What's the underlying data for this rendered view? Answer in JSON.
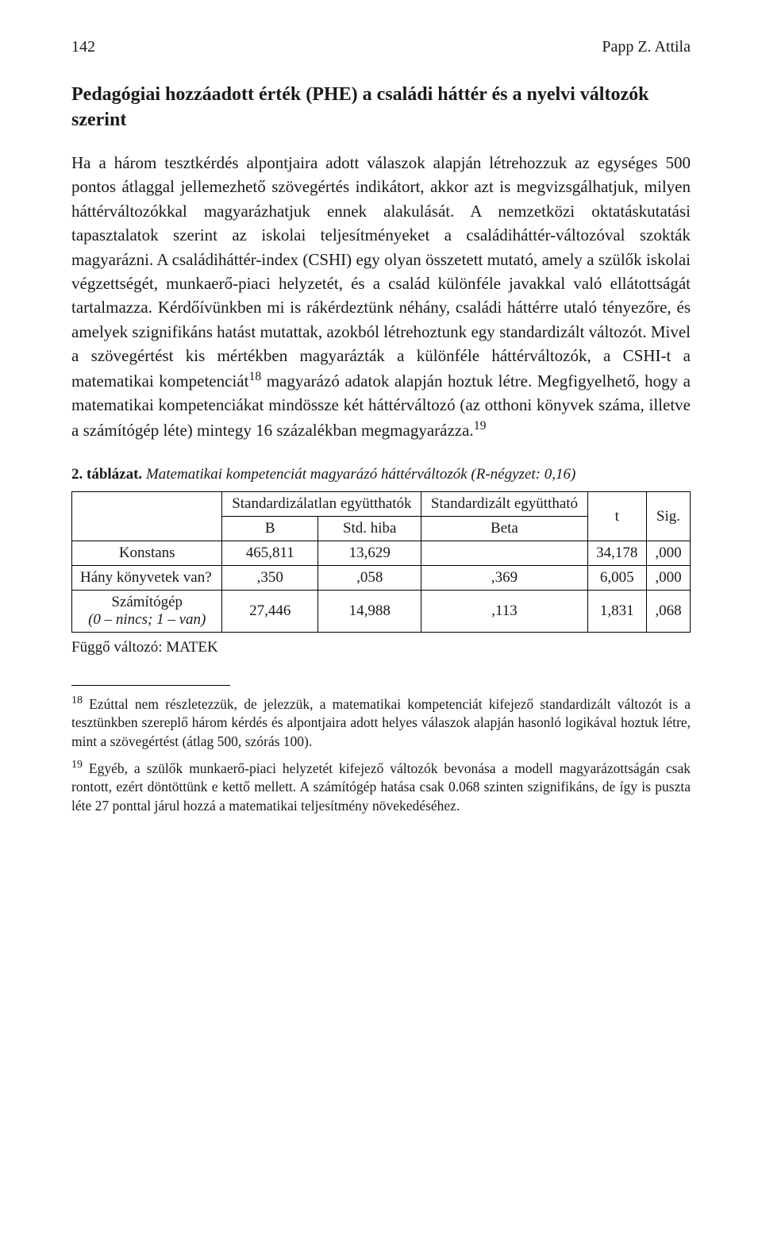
{
  "header": {
    "page_number": "142",
    "author": "Papp Z. Attila"
  },
  "section_heading": "Pedagógiai hozzáadott érték (PHE) a családi háttér és a nyelvi változók szerint",
  "body": {
    "p1a": "Ha a három tesztkérdés alpontjaira adott válaszok alapján létrehozzuk az egységes 500 pontos átlaggal jellemezhető szövegértés indikátort, akkor azt is megvizsgálhatjuk, milyen háttérváltozókkal magyarázhatjuk ennek alakulását. A nemzetközi oktatáskutatási tapasztalatok szerint az iskolai teljesítményeket a családiháttér-változóval szokták magyarázni. A családiháttér-index (CSHI) egy olyan összetett mutató, amely a szülők iskolai végzettségét, munkaerő-piaci helyzetét, és a család különféle javakkal való ellátottságát tartalmazza. Kérdőívünkben mi is rákérdeztünk néhány, családi háttérre utaló tényezőre, és amelyek szignifikáns hatást mutattak, azokból létrehoztunk egy standardizált változót. Mivel a szövegértést kis mértékben magyarázták a különféle háttérváltozók, a CSHI-t a matematikai kompetenciát",
    "p1b": " magyarázó adatok alapján hoztuk létre. Megfigyelhető, hogy a matematikai kompetenciákat mindössze két háttérváltozó (az otthoni könyvek száma, illetve a számítógép léte) mintegy 16 százalékban megmagyarázza.",
    "sup18": "18",
    "sup19": "19"
  },
  "table": {
    "caption_bold": "2. táblázat.",
    "caption_italic": " Matematikai kompetenciát magyarázó háttérváltozók (R-négyzet: 0,16)",
    "headers": {
      "h1": "Standardizálatlan együtthatók",
      "h2": "Standardizált együttható",
      "h3": "t",
      "h4": "Sig.",
      "sub_b": "B",
      "sub_std": "Std. hiba",
      "sub_beta": "Beta"
    },
    "rows": [
      {
        "label": "Konstans",
        "b": "465,811",
        "std": "13,629",
        "beta": "",
        "t": "34,178",
        "sig": ",000",
        "italic": false
      },
      {
        "label": "Hány könyvetek van?",
        "b": ",350",
        "std": ",058",
        "beta": ",369",
        "t": "6,005",
        "sig": ",000",
        "italic": false
      },
      {
        "label_line1": "Számítógép",
        "label_line2": "(0 – nincs; 1 – van)",
        "b": "27,446",
        "std": "14,988",
        "beta": ",113",
        "t": "1,831",
        "sig": ",068",
        "italic": true
      }
    ],
    "dependent_var": "Függő változó: MATEK"
  },
  "footnotes": {
    "f18_sup": "18",
    "f18": " Ezúttal nem részletezzük, de jelezzük, a matematikai kompetenciát kifejező standardizált változót is a tesztünkben szereplő három kérdés és alpontjaira adott helyes válaszok alapján hasonló logikával hoztuk létre, mint a szövegértést (átlag 500, szórás 100).",
    "f19_sup": "19",
    "f19": " Egyéb, a szülők munkaerő-piaci helyzetét kifejező változók bevonása a modell magyarázottságán csak rontott, ezért döntöttünk e kettő mellett. A számítógép hatása csak 0.068 szinten szignifikáns, de így is puszta léte 27 ponttal járul hozzá a matematikai teljesítmény növekedéséhez."
  }
}
